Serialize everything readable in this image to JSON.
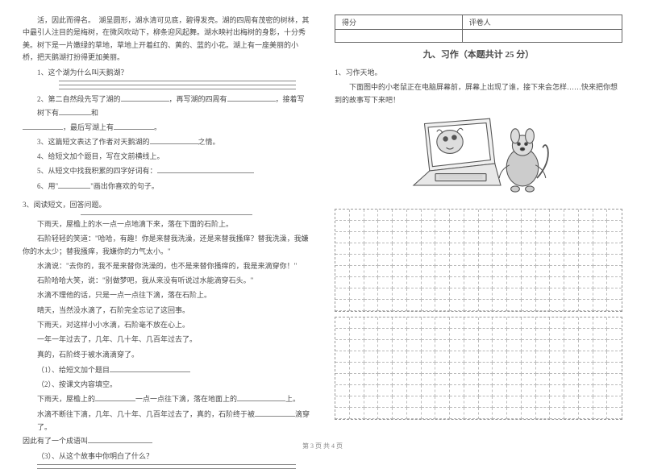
{
  "left": {
    "intro": "活，因此而得名。　湖呈圆形，湖水清可见底，碧得发亮。湖的四周有茂密的树林，其中最引人注目的是梅树，在微风吹动下，柳条迎风起舞。湖水映衬出梅树的身影，十分秀美。树下是一片嫩绿的草地，草地上开着红的、黄的、蓝的小花。湖上有一座美丽的小桥，把天鹅湖打扮得更加美丽。",
    "q1": "1、这个湖为什么叫天鹅湖？",
    "q2a": "2、第二自然段先写了湖的",
    "q2b": "，再写湖的四周有",
    "q2c": "，接着写树下有",
    "q2d": "和",
    "q2e": "，最后写湖上有",
    "q3": "3、这篇短文表达了作者对天鹅湖的",
    "q3b": "之情。",
    "q4": "4、给短文加个题目，写在文前横线上。",
    "q5": "5、从短文中找我积累的四字好词有：",
    "q6a": "6、用\"",
    "q6b": "\"画出你喜欢的句子。",
    "s3": "3、阅读短文，回答问题。",
    "p1": "下雨天，屋檐上的水一点一点地滴下来，落在下面的石阶上。",
    "p2": "石阶轻轻的笑道：\"哈哈，有趣！你是来替我洗澡，还是来替我搔痒？替我洗澡，我嫌你的水太少；替我搔痒，我嫌你的力气太小。\"",
    "p3": "水滴说：\"去你的，我不是来替你洗澡的，也不是来替你搔痒的，我是来滴穿你！\"",
    "p4": "石阶哈哈大笑，说：\"别做梦吧，我从来没有听说过水能滴穿石头。\"",
    "p5": "水滴不理他的话，只是一点一点往下滴，落在石阶上。",
    "p6": "晴天，当然没水滴了，石阶完全忘记了这回事。",
    "p7": "下雨天，对这样小小水滴，石阶毫不放在心上。",
    "p8": "一年一年过去了，几年、几十年、几百年过去了。",
    "p9": "真的，石阶终于被水滴滴穿了。",
    "sq1": "（1）、给短文加个题目",
    "sq2": "（2）、按课文内容填空。",
    "sq2a": "下雨天，屋檐上的",
    "sq2b": "一点一点往下滴，落在地面上的",
    "sq2c": "上。",
    "sq2d": "水滴不断往下滴，几年、几十年、几百年过去了，真的，石阶终于被",
    "sq2e": "滴穿了。",
    "sq2f": "因此有了一个成语叫",
    "sq3": "（3）、从这个故事中你明白了什么？"
  },
  "right": {
    "score_label1": "得分",
    "score_label2": "评卷人",
    "section_title": "九、习作（本题共计 25 分）",
    "prompt_num": "1、习作天地。",
    "prompt": "下面图中的小老鼠正在电脑屏幕前，屏幕上出现了谁，接下来会怎样……快来把你想到的故事写下来吧！"
  },
  "footer": "第 3 页  共 4 页",
  "style": {
    "grid_cols": 20,
    "grid1_rows": 9,
    "grid2_rows": 9,
    "blank_short": 50,
    "blank_med": 80,
    "blank_long": 140
  }
}
